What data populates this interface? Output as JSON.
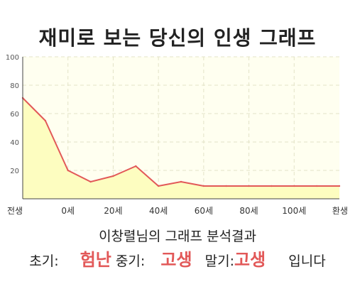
{
  "title": "재미로 보는 당신의 인생 그래프",
  "summary": "이창렬님의 그래프 분석결과",
  "verdict": {
    "early_label": "초기:",
    "early_value": "험난",
    "mid_label": "중기:",
    "mid_value": "고생",
    "late_label": "말기:",
    "late_value": "고생",
    "suffix": "입니다"
  },
  "chart_data": {
    "type": "area",
    "title": "",
    "xlabel": "",
    "ylabel": "",
    "x_tick_labels": [
      "전생",
      "0세",
      "20세",
      "40세",
      "60세",
      "80세",
      "100세",
      "환생"
    ],
    "y_ticks": [
      100,
      80,
      60,
      40,
      20
    ],
    "ylim": [
      0,
      100
    ],
    "grid": true,
    "legend": "none",
    "series": [
      {
        "values": [
          71,
          55,
          20,
          12,
          16,
          23,
          9,
          12,
          9,
          9,
          9,
          9,
          9,
          9,
          9
        ]
      }
    ],
    "colors": {
      "line": "#e25858",
      "fill": "#fdfdc0",
      "plot_bg": "#fffff0",
      "grid": "#e3e3c8"
    }
  }
}
